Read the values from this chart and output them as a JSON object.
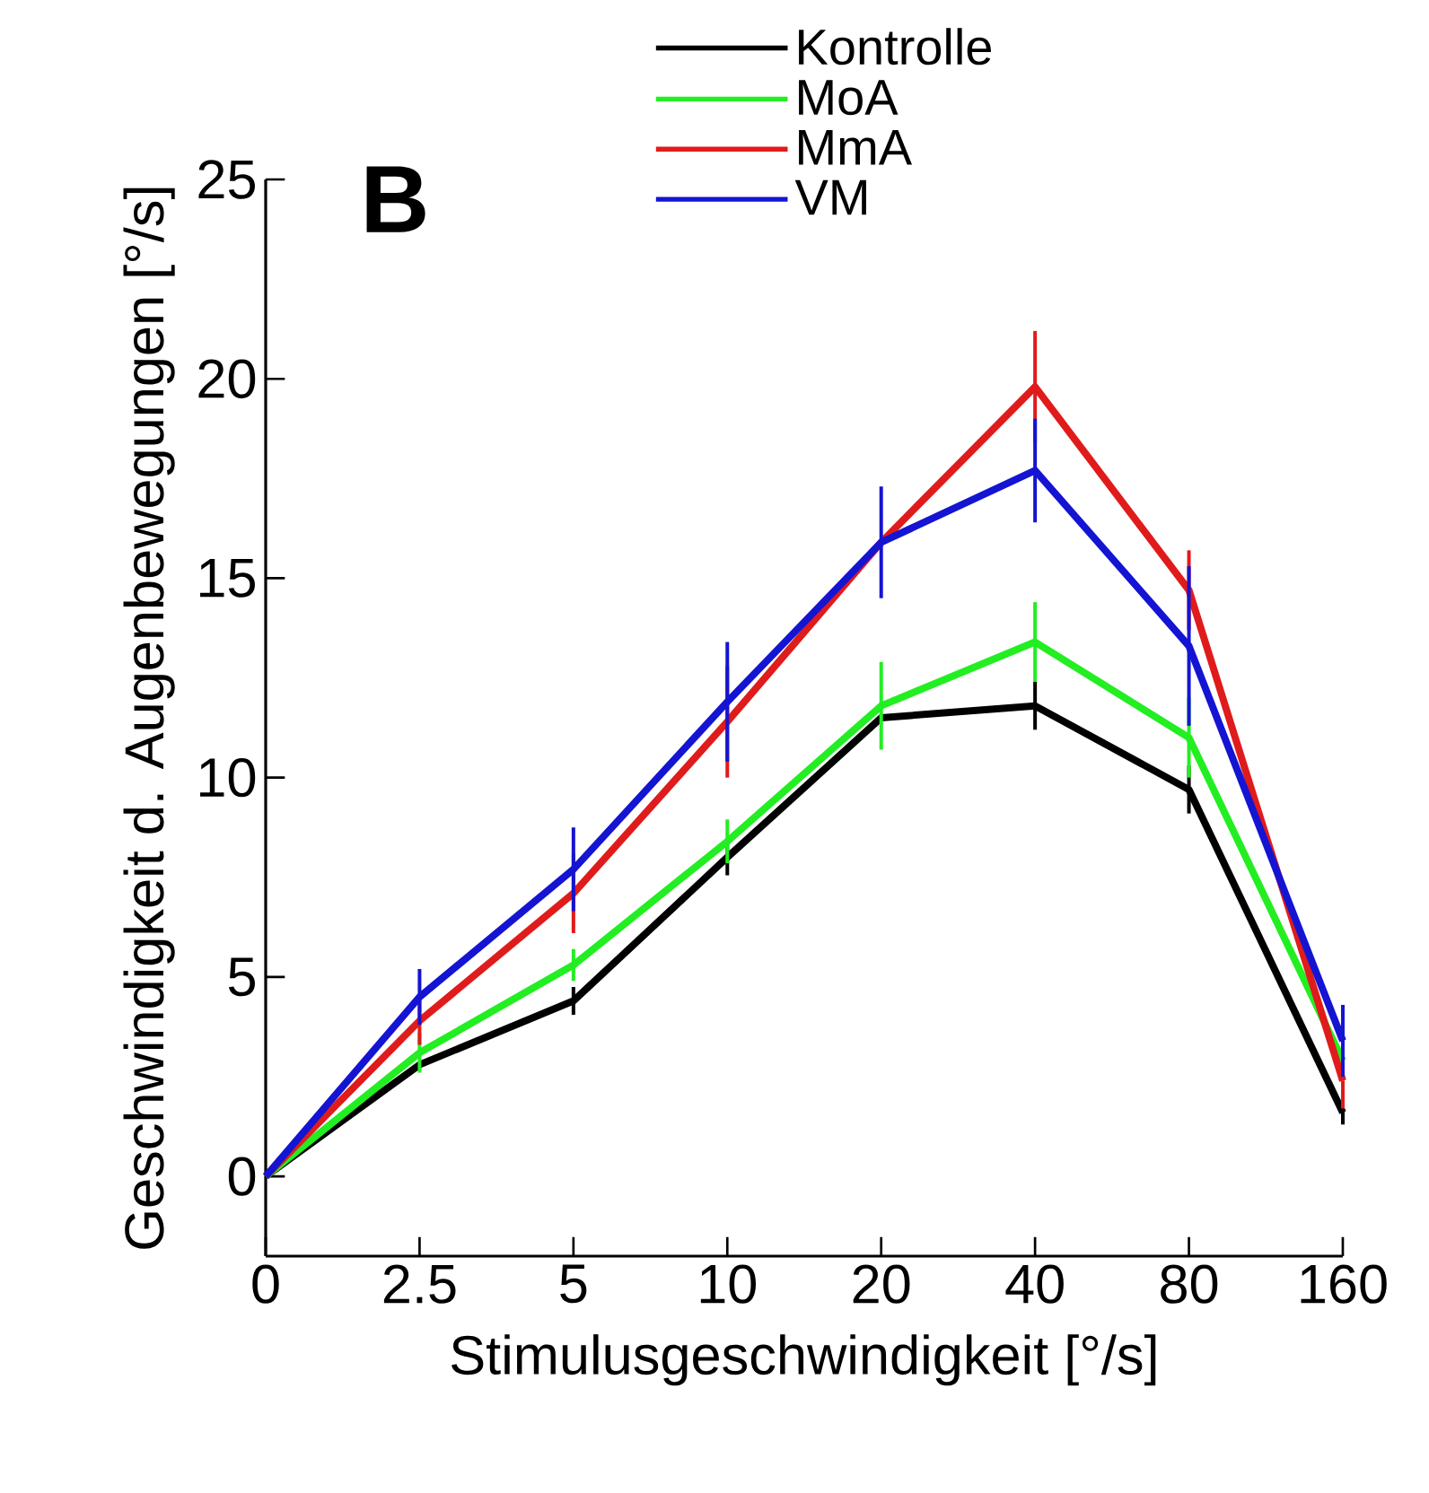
{
  "chart_data": {
    "type": "line",
    "xlabel": "Stimulusgeschwindigkeit [°/s]",
    "ylabel": "Geschwindigkeit d. Augenbewegungen [°/s]",
    "annotations": [
      "B"
    ],
    "categories": [
      "0",
      "2.5",
      "5",
      "10",
      "20",
      "40",
      "80",
      "160"
    ],
    "ylim": [
      -2,
      25
    ],
    "yticks": [
      0,
      5,
      10,
      15,
      20,
      25
    ],
    "legend": "top",
    "marker": "none",
    "line_style": "solid",
    "grid": false,
    "series": [
      {
        "name": "Kontrolle",
        "color": "#000000",
        "values": [
          0,
          2.8,
          4.4,
          8.0,
          11.5,
          11.8,
          9.7,
          1.6
        ],
        "errors": [
          null,
          null,
          0.35,
          0.45,
          null,
          0.6,
          0.6,
          0.3
        ]
      },
      {
        "name": "MoA",
        "color": "#22ee22",
        "values": [
          0,
          3.1,
          5.3,
          8.4,
          11.8,
          13.4,
          11.0,
          2.9
        ],
        "errors": [
          null,
          0.5,
          0.4,
          0.55,
          1.1,
          1.0,
          1.0,
          null
        ]
      },
      {
        "name": "MmA",
        "color": "#e01b1b",
        "values": [
          0,
          3.9,
          7.1,
          11.4,
          15.9,
          19.8,
          14.7,
          2.4
        ],
        "errors": [
          null,
          0.6,
          1.0,
          1.4,
          null,
          1.4,
          1.0,
          0.7
        ]
      },
      {
        "name": "VM",
        "color": "#1414d2",
        "values": [
          0,
          4.5,
          7.7,
          11.9,
          15.9,
          17.7,
          13.3,
          3.4
        ],
        "errors": [
          null,
          0.7,
          1.05,
          1.5,
          1.4,
          1.3,
          2.0,
          0.9
        ]
      }
    ]
  }
}
